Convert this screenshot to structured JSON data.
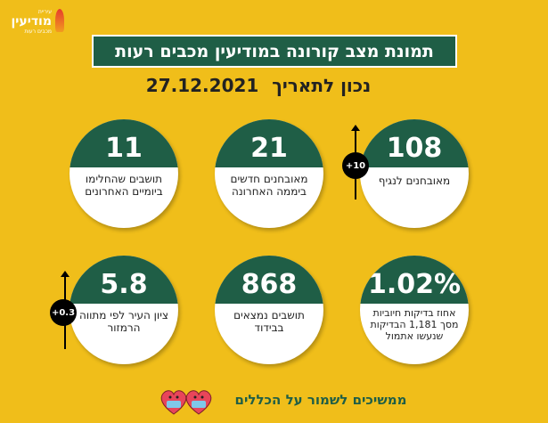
{
  "logo": {
    "top": "עיריית",
    "main": "מודיעין",
    "sub": "מכבים רעות"
  },
  "title": "תמונת מצב קורונה במודיעין מכבים רעות",
  "date_label": "נכון לתאריך",
  "date_value": "27.12.2021",
  "cards": [
    {
      "value": "108",
      "label": "מאובחנים לנגיף",
      "badge": "+10"
    },
    {
      "value": "21",
      "label": "מאובחנים חדשים ביממה האחרונה"
    },
    {
      "value": "11",
      "label": "תושבים שהחלימו ביומיים האחרונים"
    },
    {
      "value": "1.02%",
      "label": "אחוז בדיקות חיוביות מסך 1,181 הבדיקות שנעשו אתמול"
    },
    {
      "value": "868",
      "label": "תושבים נמצאים בבידוד"
    },
    {
      "value": "5.8",
      "label": "ציון העיר לפי מתווה הרמזור",
      "badge": "+0.3"
    }
  ],
  "footer": "ממשיכים לשמור על הכללים"
}
